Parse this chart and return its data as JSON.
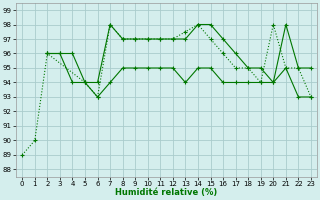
{
  "background_color": "#d4eeed",
  "grid_color": "#aacccc",
  "line_color": "#007700",
  "xlabel": "Humidité relative (%)",
  "xlim": [
    -0.5,
    23.5
  ],
  "ylim": [
    87.5,
    99.5
  ],
  "yticks": [
    88,
    89,
    90,
    91,
    92,
    93,
    94,
    95,
    96,
    97,
    98,
    99
  ],
  "xticks": [
    0,
    1,
    2,
    3,
    4,
    5,
    6,
    7,
    8,
    9,
    10,
    11,
    12,
    13,
    14,
    15,
    16,
    17,
    18,
    19,
    20,
    21,
    22,
    23
  ],
  "series": [
    {
      "x": [
        0,
        1,
        2,
        5,
        6,
        7,
        8,
        9,
        10,
        11,
        12,
        13,
        14,
        15,
        16,
        17,
        18,
        19,
        20,
        21,
        22,
        23
      ],
      "y": [
        89,
        90,
        96,
        94,
        93,
        98,
        97,
        97,
        97,
        97,
        97,
        97.5,
        98,
        97,
        96,
        95,
        95,
        94,
        98,
        95,
        95,
        93
      ],
      "linestyle": "dotted",
      "marker": "+"
    },
    {
      "x": [
        2,
        3,
        4,
        5,
        6,
        7,
        8,
        9,
        10,
        11,
        12,
        13,
        14,
        15,
        16,
        17,
        18,
        19,
        20,
        21,
        22,
        23
      ],
      "y": [
        96,
        96,
        96,
        94,
        94,
        98,
        97,
        97,
        97,
        97,
        97,
        97,
        98,
        98,
        97,
        96,
        95,
        95,
        94,
        98,
        95,
        95
      ],
      "linestyle": "-",
      "marker": "+"
    },
    {
      "x": [
        2,
        3,
        4,
        5,
        6,
        7,
        8,
        9,
        10,
        11,
        12,
        13,
        14,
        15,
        16,
        17,
        18,
        19,
        20,
        21,
        22,
        23
      ],
      "y": [
        96,
        96,
        94,
        94,
        93,
        94,
        95,
        95,
        95,
        95,
        95,
        94,
        95,
        95,
        94,
        94,
        94,
        94,
        94,
        95,
        93,
        93
      ],
      "linestyle": "-",
      "marker": "+"
    }
  ]
}
